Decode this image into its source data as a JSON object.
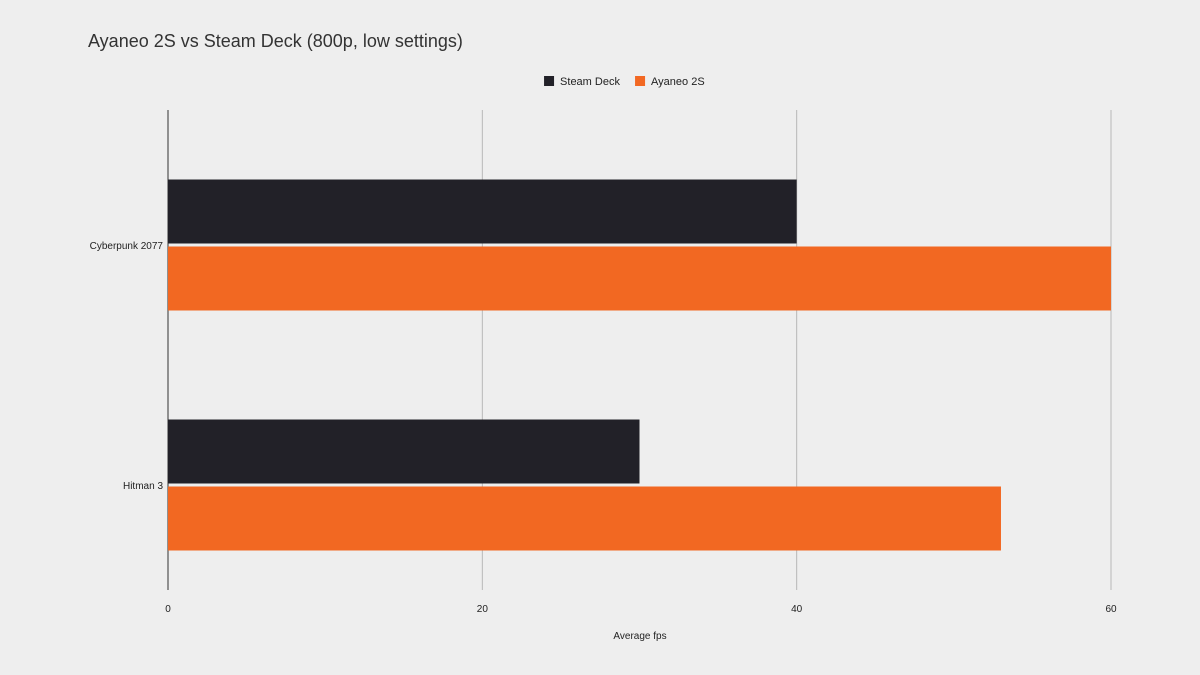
{
  "chart_data": {
    "type": "bar",
    "orientation": "horizontal",
    "title": "Ayaneo 2S vs Steam Deck (800p, low settings)",
    "xlabel": "Average fps",
    "ylabel": "",
    "categories": [
      "Cyberpunk 2077",
      "Hitman 3"
    ],
    "series": [
      {
        "name": "Steam Deck",
        "color": "#222128",
        "values": [
          40,
          30
        ]
      },
      {
        "name": "Ayaneo 2S",
        "color": "#f26822",
        "values": [
          60,
          53
        ]
      }
    ],
    "xlim": [
      0,
      60
    ],
    "xticks": [
      "0",
      "20",
      "40",
      "60"
    ],
    "grid": true,
    "legend_position": "top-center"
  }
}
